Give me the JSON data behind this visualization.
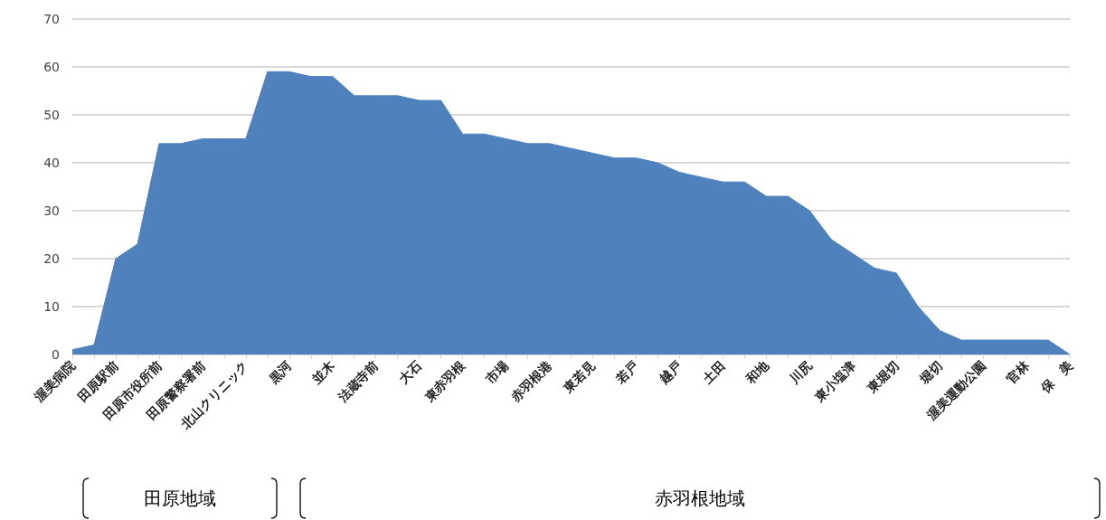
{
  "chart_data": {
    "type": "area",
    "categories": [
      "渥美病院",
      null,
      "田原駅前",
      null,
      "田原市役所前",
      null,
      "田原警察署前",
      null,
      "北山クリニック",
      null,
      "黒河",
      null,
      "並木",
      null,
      "法蔵寺前",
      null,
      "大石",
      null,
      "東赤羽根",
      null,
      "市場",
      null,
      "赤羽根港",
      null,
      "東若見",
      null,
      "若戸",
      null,
      "越戸",
      null,
      "土田",
      null,
      "和地",
      null,
      "川尻",
      null,
      "東小塩津",
      null,
      "東堀切",
      null,
      "堀切",
      null,
      "渥美運動公園",
      null,
      "官林",
      null,
      "保　美"
    ],
    "values": [
      1,
      2,
      20,
      23,
      44,
      44,
      45,
      45,
      45,
      59,
      59,
      58,
      58,
      54,
      54,
      54,
      53,
      53,
      46,
      46,
      45,
      44,
      44,
      43,
      42,
      41,
      41,
      40,
      38,
      37,
      36,
      36,
      33,
      33,
      30,
      24,
      21,
      18,
      17,
      10,
      5,
      3,
      3,
      3,
      3,
      3,
      0
    ],
    "color": "#4f81bd",
    "ylim": [
      0,
      70
    ],
    "yticks": [
      0,
      10,
      20,
      30,
      40,
      50,
      60,
      70
    ],
    "grid": "y",
    "annotations": [
      "田原地域",
      "赤羽根地域"
    ]
  }
}
